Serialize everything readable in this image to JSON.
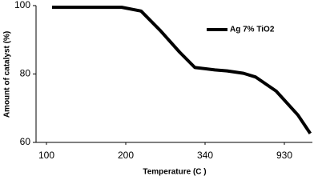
{
  "chart_data": {
    "type": "line",
    "x_label": "Temperature (C )",
    "y_label": "Amount of catalyst (%)",
    "x": [
      107,
      195,
      227,
      261,
      295,
      322,
      413,
      504,
      626,
      717,
      869,
      1033,
      1127
    ],
    "series": [
      {
        "name": "Ag 7% TiO2",
        "color": "#000000",
        "values": [
          99.5,
          99.5,
          98.4,
          92.7,
          86.4,
          81.9,
          81.2,
          80.9,
          80.2,
          79.1,
          75,
          68,
          62.6
        ]
      }
    ],
    "xlim": [
      87,
      1143
    ],
    "xticks": [
      100,
      200,
      340,
      930
    ],
    "ylim": [
      60,
      100
    ],
    "yticks": [
      60,
      80,
      100
    ],
    "legend": "top-right"
  }
}
